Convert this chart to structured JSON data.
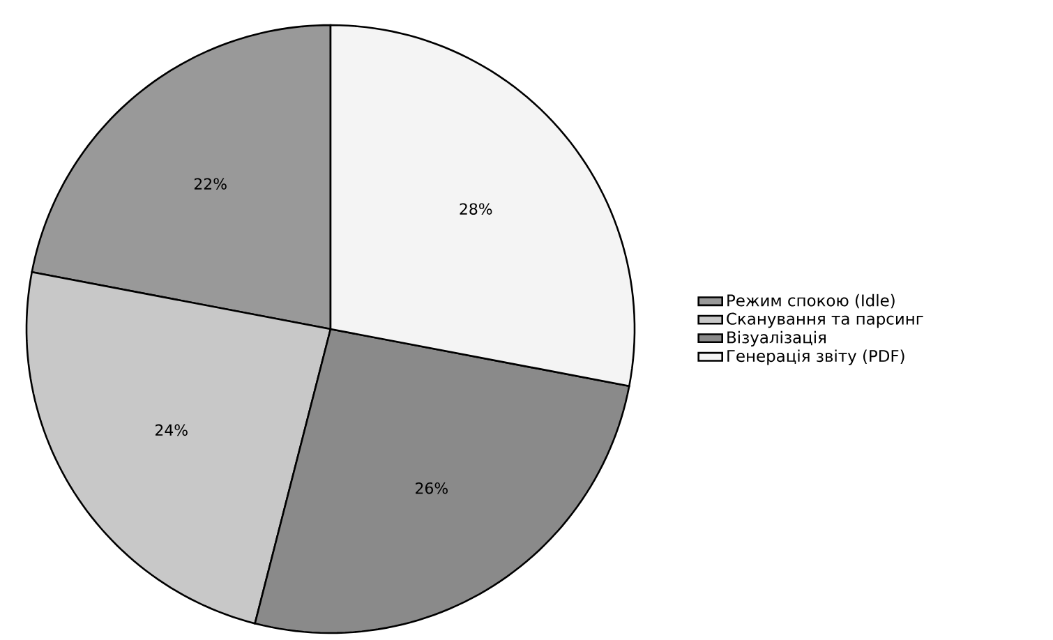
{
  "chart_data": {
    "type": "pie",
    "categories": [
      "Режим спокою (Idle)",
      "Сканування та парсинг",
      "Візуалізація",
      "Генерація звіту (PDF)"
    ],
    "values": [
      22,
      24,
      26,
      28
    ],
    "value_labels": [
      "22%",
      "24%",
      "26%",
      "28%"
    ],
    "colors": [
      "#999999",
      "#c8c8c8",
      "#8a8a8a",
      "#f4f4f4"
    ],
    "legend": "right"
  }
}
